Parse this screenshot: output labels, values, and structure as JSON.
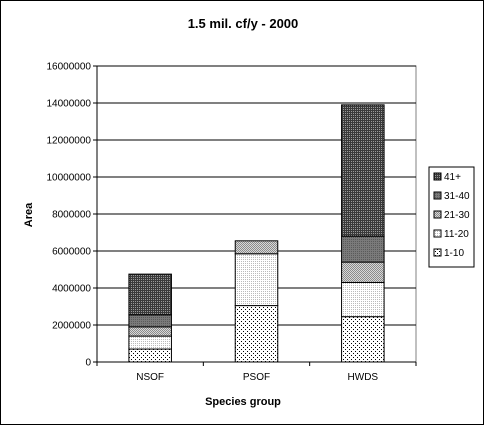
{
  "chart_data": {
    "type": "bar",
    "stacked": true,
    "title": "1.5 mil. cf/y - 2000",
    "xlabel": "Species group",
    "ylabel": "Area",
    "categories": [
      "NSOF",
      "PSOF",
      "HWDS"
    ],
    "ylim": [
      0,
      16000000
    ],
    "yticks": [
      0,
      2000000,
      4000000,
      6000000,
      8000000,
      10000000,
      12000000,
      14000000,
      16000000
    ],
    "ytick_labels": [
      "0",
      "2000000",
      "4000000",
      "6000000",
      "8000000",
      "10000000",
      "12000000",
      "14000000",
      "16000000"
    ],
    "grid": true,
    "legend_position": "right",
    "series": [
      {
        "name": "1-10",
        "pattern": "sparse-dots",
        "values": [
          700000,
          3050000,
          2450000
        ]
      },
      {
        "name": "11-20",
        "pattern": "light-dots",
        "values": [
          700000,
          2800000,
          1850000
        ]
      },
      {
        "name": "21-30",
        "pattern": "medium-dots",
        "values": [
          500000,
          700000,
          1100000
        ]
      },
      {
        "name": "31-40",
        "pattern": "dark-gray",
        "values": [
          650000,
          0,
          1400000
        ]
      },
      {
        "name": "41+",
        "pattern": "dense-dots",
        "values": [
          2200000,
          0,
          7100000
        ]
      }
    ]
  }
}
